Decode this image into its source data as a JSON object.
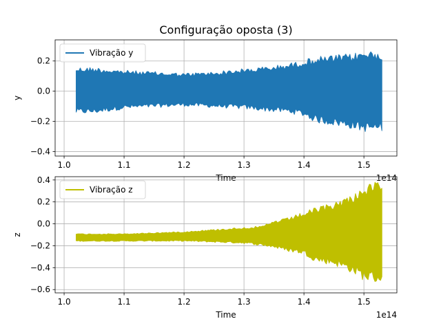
{
  "figure": {
    "title": "Configuração oposta (3)"
  },
  "chart_data": [
    {
      "type": "area",
      "title": "Configuração oposta (3)",
      "xlabel": "Time",
      "ylabel": "y",
      "x_offset_label": "1e14",
      "xlim": [
        0.985,
        1.555
      ],
      "ylim": [
        -0.43,
        0.34
      ],
      "xticks": [
        1.0,
        1.1,
        1.2,
        1.3,
        1.4,
        1.5
      ],
      "xtick_labels": [
        "1.0",
        "1.1",
        "1.2",
        "1.3",
        "1.4",
        "1.5"
      ],
      "yticks": [
        -0.4,
        -0.2,
        0.0,
        0.2
      ],
      "ytick_labels": [
        "−0.4",
        "−0.2",
        "0.0",
        "0.2"
      ],
      "grid": true,
      "legend_position": "top-left",
      "series": [
        {
          "name": "Vibração y",
          "color": "#1f77b4",
          "x": [
            1.02,
            1.05,
            1.1,
            1.15,
            1.2,
            1.25,
            1.3,
            1.35,
            1.38,
            1.4,
            1.42,
            1.45,
            1.48,
            1.5,
            1.53
          ],
          "upper": [
            0.16,
            0.16,
            0.14,
            0.13,
            0.12,
            0.13,
            0.15,
            0.17,
            0.19,
            0.21,
            0.23,
            0.24,
            0.25,
            0.27,
            0.27
          ],
          "lower": [
            -0.15,
            -0.15,
            -0.12,
            -0.11,
            -0.1,
            -0.11,
            -0.12,
            -0.14,
            -0.15,
            -0.17,
            -0.21,
            -0.23,
            -0.25,
            -0.27,
            -0.27
          ]
        }
      ]
    },
    {
      "type": "area",
      "xlabel": "Time",
      "ylabel": "z",
      "x_offset_label": "1e14",
      "xlim": [
        0.985,
        1.555
      ],
      "ylim": [
        -0.63,
        0.43
      ],
      "xticks": [
        1.0,
        1.1,
        1.2,
        1.3,
        1.4,
        1.5
      ],
      "xtick_labels": [
        "1.0",
        "1.1",
        "1.2",
        "1.3",
        "1.4",
        "1.5"
      ],
      "yticks": [
        -0.6,
        -0.4,
        -0.2,
        0.0,
        0.2,
        0.4
      ],
      "ytick_labels": [
        "−0.6",
        "−0.4",
        "−0.2",
        "0.0",
        "0.2",
        "0.4"
      ],
      "grid": true,
      "legend_position": "top-left",
      "series": [
        {
          "name": "Vibração z",
          "color": "#bfbf00",
          "x": [
            1.02,
            1.05,
            1.1,
            1.15,
            1.2,
            1.25,
            1.3,
            1.33,
            1.35,
            1.37,
            1.4,
            1.42,
            1.45,
            1.48,
            1.5,
            1.53
          ],
          "upper": [
            -0.09,
            -0.09,
            -0.09,
            -0.08,
            -0.07,
            -0.05,
            -0.03,
            -0.02,
            0.03,
            0.05,
            0.11,
            0.15,
            0.2,
            0.27,
            0.35,
            0.4
          ],
          "lower": [
            -0.16,
            -0.16,
            -0.16,
            -0.16,
            -0.16,
            -0.17,
            -0.18,
            -0.2,
            -0.22,
            -0.25,
            -0.28,
            -0.35,
            -0.38,
            -0.45,
            -0.52,
            -0.55
          ]
        }
      ]
    }
  ]
}
